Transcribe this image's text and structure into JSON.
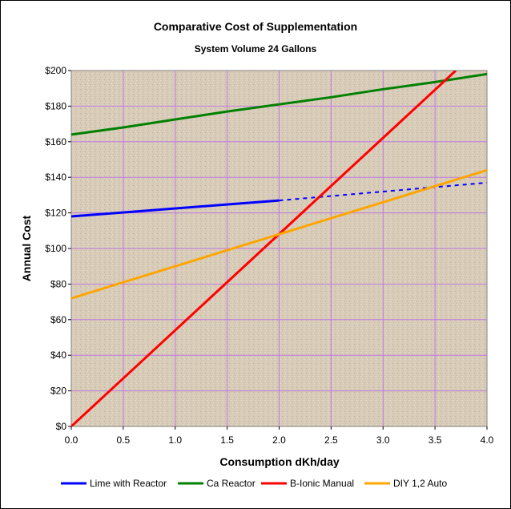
{
  "chart_data": {
    "type": "line",
    "title": "Comparative Cost of Supplementation",
    "subtitle": "System Volume 24 Gallons",
    "xlabel": "Consumption dKh/day",
    "ylabel": "Annual Cost",
    "xlim": [
      0,
      4
    ],
    "ylim": [
      0,
      200
    ],
    "x_ticks": [
      "0.0",
      "0.5",
      "1.0",
      "1.5",
      "2.0",
      "2.5",
      "3.0",
      "3.5",
      "4.0"
    ],
    "y_ticks": [
      "$0",
      "$20",
      "$40",
      "$60",
      "$80",
      "$100",
      "$120",
      "$140",
      "$160",
      "$180",
      "$200"
    ],
    "grid": true,
    "legend_position": "bottom",
    "series": [
      {
        "name": "Lime with Reactor",
        "color": "#0000ff",
        "solid": [
          [
            0.0,
            118
          ],
          [
            2.0,
            127
          ]
        ],
        "dashed": [
          [
            2.0,
            127
          ],
          [
            4.0,
            137
          ]
        ]
      },
      {
        "name": "Ca Reactor",
        "color": "#008000",
        "solid": [
          [
            0.0,
            164
          ],
          [
            0.5,
            168
          ],
          [
            1.0,
            172.5
          ],
          [
            1.5,
            177
          ],
          [
            2.0,
            181
          ],
          [
            2.5,
            185
          ],
          [
            3.0,
            189.5
          ],
          [
            3.5,
            193.5
          ],
          [
            4.0,
            198
          ]
        ]
      },
      {
        "name": "B-Ionic Manual",
        "color": "#ff0000",
        "solid": [
          [
            0.0,
            0
          ],
          [
            3.7,
            200
          ]
        ]
      },
      {
        "name": "DIY 1,2 Auto",
        "color": "#ffa500",
        "solid": [
          [
            0.0,
            72
          ],
          [
            4.0,
            144
          ]
        ]
      }
    ]
  },
  "colors": {
    "plot_background": "#d8ccb8",
    "gridline": "#c078e0",
    "plot_border": "#808080"
  }
}
